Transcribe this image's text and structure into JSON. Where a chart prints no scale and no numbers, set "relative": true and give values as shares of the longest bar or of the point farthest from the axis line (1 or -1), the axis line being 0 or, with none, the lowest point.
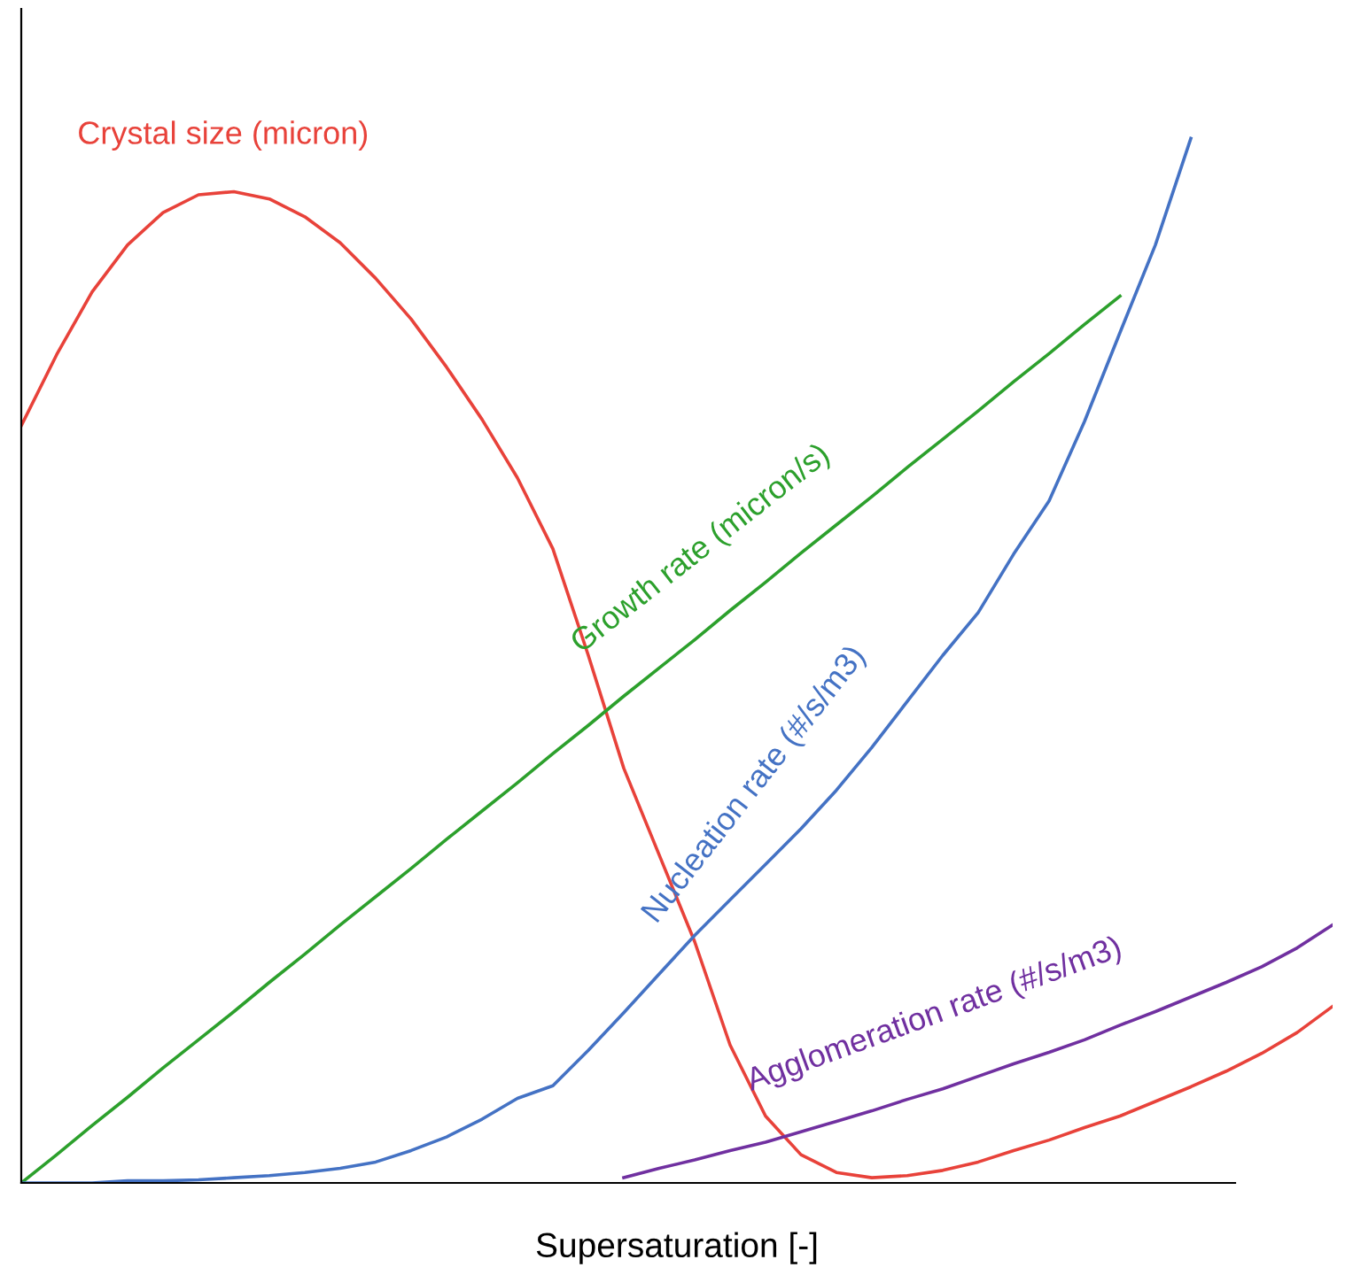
{
  "chart_data": {
    "type": "line",
    "relative": true,
    "xlabel": "Supersaturation [-]",
    "legend": false,
    "marker": "none",
    "line_style": "solid",
    "categories": [
      null,
      null,
      null,
      null,
      null,
      null,
      null,
      null,
      null,
      null,
      null,
      null,
      null,
      null,
      null,
      null,
      null,
      null,
      null,
      null,
      null,
      null,
      null,
      null,
      null,
      null,
      null,
      null,
      null,
      null,
      null,
      null,
      null,
      null,
      null,
      null,
      null,
      null
    ],
    "series": [
      {
        "name": "Crystal size (micron)",
        "color": "#e8423a",
        "values": [
          0.725,
          0.793,
          0.853,
          0.898,
          0.929,
          0.946,
          0.949,
          0.942,
          0.925,
          0.9,
          0.866,
          0.827,
          0.781,
          0.731,
          0.675,
          0.607,
          0.505,
          0.397,
          0.314,
          0.231,
          0.132,
          0.064,
          0.027,
          0.01,
          0.005,
          0.007,
          0.012,
          0.02,
          0.031,
          0.041,
          0.053,
          0.064,
          0.078,
          0.092,
          0.107,
          0.124,
          0.144,
          0.169
        ]
      },
      {
        "name": "Growth rate (micron/s)",
        "color": "#2ca02c",
        "values": [
          0,
          0.027,
          0.055,
          0.082,
          0.11,
          0.137,
          0.164,
          0.192,
          0.219,
          0.247,
          0.274,
          0.301,
          0.329,
          0.356,
          0.383,
          0.411,
          0.438,
          0.466,
          0.493,
          0.52,
          0.548,
          0.575,
          0.603,
          0.63,
          0.657,
          0.685,
          0.712,
          0.739,
          0.767,
          0.794,
          0.822,
          0.849,
          null,
          null,
          null,
          null,
          null,
          null
        ]
      },
      {
        "name": "Nucleation rate (#/s/m3)",
        "color": "#4472c4",
        "values": [
          0,
          0,
          0,
          0.002,
          0.002,
          0.003,
          0.005,
          0.007,
          0.01,
          0.014,
          0.02,
          0.031,
          0.044,
          0.061,
          0.081,
          0.093,
          0.127,
          0.163,
          0.2,
          0.237,
          0.271,
          0.305,
          0.339,
          0.376,
          0.417,
          0.461,
          0.505,
          0.546,
          0.602,
          0.653,
          0.729,
          0.814,
          0.898,
          1,
          null,
          null,
          null,
          null
        ]
      },
      {
        "name": "Agglomeration rate (#/s/m3)",
        "color": "#7030a0",
        "values": [
          null,
          null,
          null,
          null,
          null,
          null,
          null,
          null,
          null,
          null,
          null,
          null,
          null,
          null,
          null,
          null,
          null,
          0.005,
          0.014,
          0.022,
          0.031,
          0.039,
          0.049,
          0.059,
          0.069,
          0.08,
          0.09,
          0.102,
          0.114,
          0.125,
          0.137,
          0.151,
          0.164,
          0.178,
          0.192,
          0.207,
          0.225,
          0.247
        ]
      }
    ]
  }
}
